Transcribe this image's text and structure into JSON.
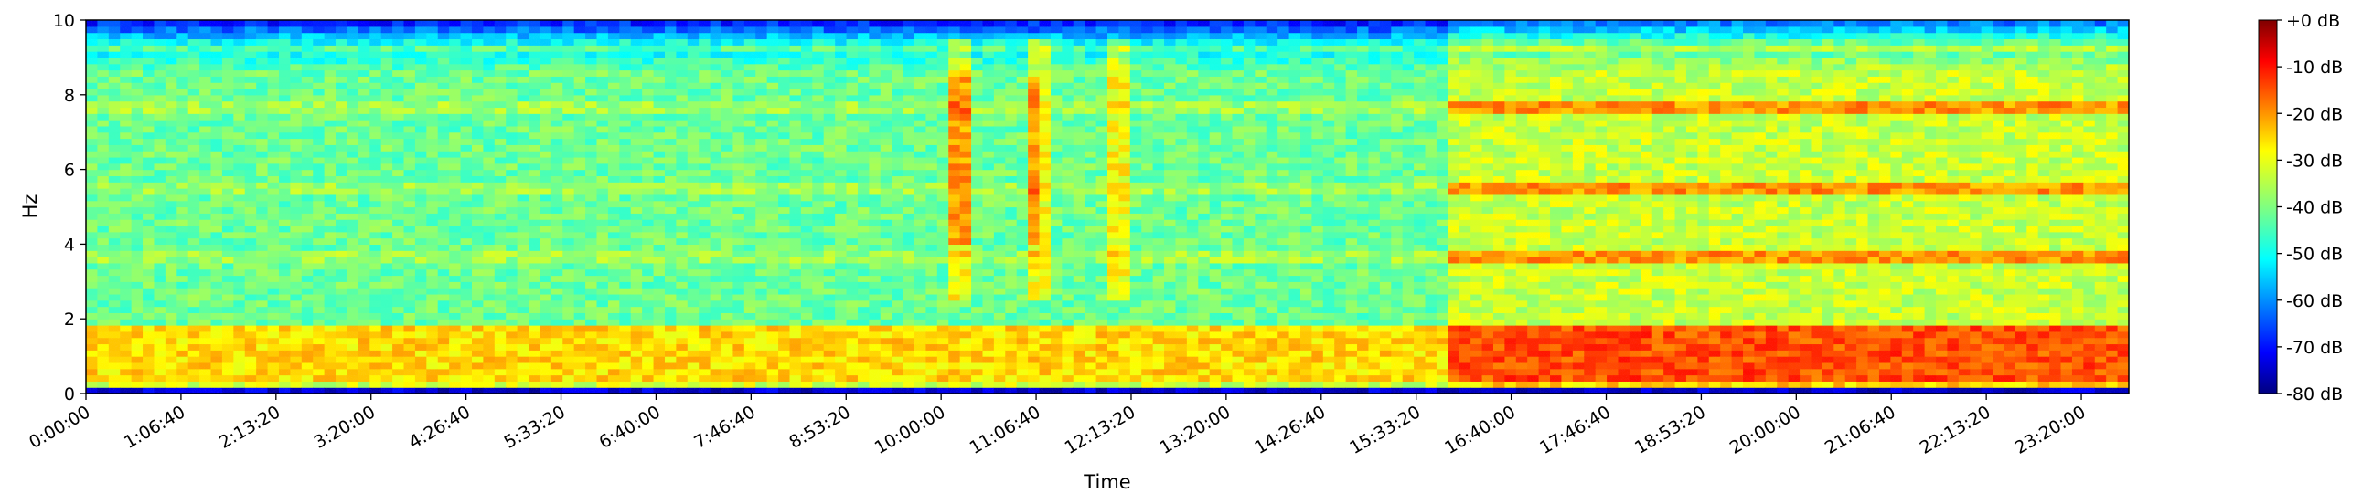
{
  "chart_data": {
    "type": "heatmap",
    "subtype": "spectrogram",
    "xlabel": "Time",
    "ylabel": "Hz",
    "x_ticks": [
      "0:00:00",
      "1:06:40",
      "2:13:20",
      "3:20:00",
      "4:26:40",
      "5:33:20",
      "6:40:00",
      "7:46:40",
      "8:53:20",
      "10:00:00",
      "11:06:40",
      "12:13:20",
      "13:20:00",
      "14:26:40",
      "15:33:20",
      "16:40:00",
      "17:46:40",
      "18:53:20",
      "20:00:00",
      "21:06:40",
      "22:13:20",
      "23:20:00"
    ],
    "x_tick_seconds": [
      0,
      4000,
      8000,
      12000,
      16000,
      20000,
      24000,
      28000,
      32000,
      36000,
      40000,
      44000,
      48000,
      52000,
      56000,
      60000,
      64000,
      68000,
      72000,
      76000,
      80000,
      84000
    ],
    "xlim_seconds": [
      0,
      86000
    ],
    "y_ticks": [
      "0",
      "2",
      "4",
      "6",
      "8",
      "10"
    ],
    "y_tick_values": [
      0,
      2,
      4,
      6,
      8,
      10
    ],
    "ylim": [
      0,
      10
    ],
    "colorbar": {
      "colormap": "jet",
      "range_db": [
        -80,
        0
      ],
      "ticks": [
        "+0 dB",
        "-10 dB",
        "-20 dB",
        "-30 dB",
        "-40 dB",
        "-50 dB",
        "-60 dB",
        "-70 dB",
        "-80 dB"
      ],
      "tick_values": [
        0,
        -10,
        -20,
        -30,
        -40,
        -50,
        -60,
        -70,
        -80
      ]
    },
    "features": {
      "low_frequency_band_hz": [
        0.3,
        1.8
      ],
      "tonal_lines_hz": [
        3.7,
        5.5,
        7.6
      ],
      "tonal_lines_start_seconds": 57500,
      "broadband_transients_seconds": [
        36000,
        46000
      ],
      "active_period_start_seconds": 57500
    }
  }
}
